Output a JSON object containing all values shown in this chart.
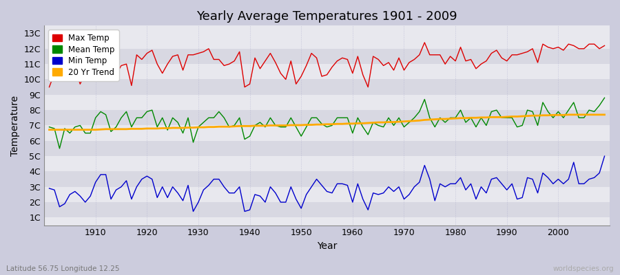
{
  "title": "Yearly Average Temperatures 1901 - 2009",
  "xlabel": "Year",
  "ylabel": "Temperature",
  "lat_lon_label": "Latitude 56.75 Longitude 12.25",
  "watermark": "worldspecies.org",
  "years": [
    1901,
    1902,
    1903,
    1904,
    1905,
    1906,
    1907,
    1908,
    1909,
    1910,
    1911,
    1912,
    1913,
    1914,
    1915,
    1916,
    1917,
    1918,
    1919,
    1920,
    1921,
    1922,
    1923,
    1924,
    1925,
    1926,
    1927,
    1928,
    1929,
    1930,
    1931,
    1932,
    1933,
    1934,
    1935,
    1936,
    1937,
    1938,
    1939,
    1940,
    1941,
    1942,
    1943,
    1944,
    1945,
    1946,
    1947,
    1948,
    1949,
    1950,
    1951,
    1952,
    1953,
    1954,
    1955,
    1956,
    1957,
    1958,
    1959,
    1960,
    1961,
    1962,
    1963,
    1964,
    1965,
    1966,
    1967,
    1968,
    1969,
    1970,
    1971,
    1972,
    1973,
    1974,
    1975,
    1976,
    1977,
    1978,
    1979,
    1980,
    1981,
    1982,
    1983,
    1984,
    1985,
    1986,
    1987,
    1988,
    1989,
    1990,
    1991,
    1992,
    1993,
    1994,
    1995,
    1996,
    1997,
    1998,
    1999,
    2000,
    2001,
    2002,
    2003,
    2004,
    2005,
    2006,
    2007,
    2008,
    2009
  ],
  "max_temp": [
    9.5,
    10.4,
    10.5,
    10.2,
    10.6,
    10.7,
    9.7,
    10.4,
    10.7,
    11.5,
    11.6,
    11.2,
    11.0,
    10.3,
    10.9,
    11.0,
    9.6,
    11.6,
    11.3,
    11.7,
    11.9,
    11.0,
    10.4,
    11.0,
    11.5,
    11.6,
    10.6,
    11.6,
    11.6,
    11.7,
    11.8,
    12.0,
    11.3,
    11.3,
    10.9,
    11.0,
    11.2,
    11.8,
    9.5,
    9.7,
    11.4,
    10.7,
    11.2,
    11.7,
    11.1,
    10.4,
    10.0,
    11.2,
    9.7,
    10.2,
    10.9,
    11.7,
    11.4,
    10.2,
    10.3,
    10.8,
    11.2,
    11.4,
    11.3,
    10.4,
    11.5,
    10.3,
    9.5,
    11.5,
    11.3,
    10.9,
    11.1,
    10.6,
    11.4,
    10.6,
    11.1,
    11.3,
    11.6,
    12.4,
    11.6,
    11.6,
    11.6,
    11.0,
    11.5,
    11.2,
    12.1,
    11.2,
    11.3,
    10.7,
    11.0,
    11.2,
    11.7,
    11.9,
    11.4,
    11.2,
    11.6,
    11.6,
    11.7,
    11.8,
    12.0,
    11.1,
    12.3,
    12.1,
    12.0,
    12.1,
    11.9,
    12.3,
    12.2,
    12.0,
    12.0,
    12.3,
    12.3,
    12.0,
    12.2
  ],
  "mean_temp": [
    6.9,
    6.8,
    5.5,
    6.8,
    6.5,
    6.9,
    7.0,
    6.5,
    6.5,
    7.5,
    7.9,
    7.7,
    6.6,
    6.9,
    7.5,
    7.9,
    6.9,
    7.5,
    7.5,
    7.9,
    8.0,
    6.9,
    7.5,
    6.7,
    7.5,
    7.2,
    6.5,
    7.5,
    5.9,
    6.9,
    7.2,
    7.5,
    7.5,
    7.9,
    7.5,
    6.9,
    7.0,
    7.5,
    6.1,
    6.3,
    7.0,
    7.2,
    6.9,
    7.5,
    7.0,
    6.9,
    6.9,
    7.5,
    6.9,
    6.3,
    6.9,
    7.5,
    7.5,
    7.1,
    6.9,
    7.0,
    7.5,
    7.5,
    7.5,
    6.5,
    7.5,
    6.9,
    6.4,
    7.2,
    7.0,
    6.9,
    7.5,
    7.0,
    7.5,
    6.9,
    7.2,
    7.5,
    7.9,
    8.7,
    7.5,
    6.9,
    7.5,
    7.2,
    7.5,
    7.5,
    8.0,
    7.2,
    7.5,
    6.9,
    7.5,
    7.0,
    7.9,
    8.0,
    7.5,
    7.5,
    7.5,
    6.9,
    7.0,
    8.0,
    7.9,
    7.0,
    8.5,
    7.9,
    7.5,
    7.9,
    7.5,
    8.0,
    8.5,
    7.5,
    7.5,
    8.0,
    7.9,
    8.3,
    8.8
  ],
  "min_temp": [
    2.9,
    2.8,
    1.7,
    1.9,
    2.5,
    2.7,
    2.4,
    2.0,
    2.4,
    3.3,
    3.8,
    3.8,
    2.2,
    2.8,
    3.0,
    3.4,
    2.2,
    3.0,
    3.5,
    3.7,
    3.5,
    2.3,
    3.0,
    2.3,
    3.0,
    2.6,
    2.1,
    3.1,
    1.4,
    2.0,
    2.8,
    3.1,
    3.5,
    3.5,
    3.0,
    2.6,
    2.6,
    3.0,
    1.4,
    1.5,
    2.5,
    2.4,
    2.0,
    3.0,
    2.6,
    2.0,
    2.0,
    3.0,
    2.2,
    1.6,
    2.5,
    3.0,
    3.5,
    3.1,
    2.7,
    2.6,
    3.2,
    3.2,
    3.1,
    2.0,
    3.2,
    2.2,
    1.5,
    2.6,
    2.5,
    2.6,
    3.0,
    2.7,
    3.0,
    2.2,
    2.5,
    3.0,
    3.3,
    4.4,
    3.5,
    2.1,
    3.2,
    3.0,
    3.2,
    3.2,
    3.6,
    2.8,
    3.2,
    2.2,
    3.0,
    2.6,
    3.5,
    3.6,
    3.2,
    2.8,
    3.2,
    2.2,
    2.3,
    3.6,
    3.5,
    2.6,
    3.9,
    3.6,
    3.2,
    3.5,
    3.2,
    3.5,
    4.6,
    3.2,
    3.2,
    3.5,
    3.6,
    3.9,
    5.0
  ],
  "trend": [
    6.72,
    6.72,
    6.72,
    6.72,
    6.72,
    6.72,
    6.72,
    6.72,
    6.72,
    6.72,
    6.74,
    6.76,
    6.76,
    6.76,
    6.76,
    6.76,
    6.78,
    6.78,
    6.78,
    6.8,
    6.8,
    6.8,
    6.82,
    6.82,
    6.84,
    6.84,
    6.84,
    6.86,
    6.86,
    6.88,
    6.88,
    6.9,
    6.9,
    6.92,
    6.92,
    6.92,
    6.94,
    6.96,
    6.96,
    6.96,
    6.98,
    6.98,
    6.98,
    7.0,
    7.0,
    7.0,
    7.0,
    7.02,
    7.02,
    7.02,
    7.04,
    7.04,
    7.06,
    7.06,
    7.08,
    7.08,
    7.1,
    7.1,
    7.12,
    7.12,
    7.14,
    7.14,
    7.16,
    7.18,
    7.2,
    7.2,
    7.22,
    7.22,
    7.24,
    7.26,
    7.28,
    7.3,
    7.32,
    7.36,
    7.38,
    7.4,
    7.42,
    7.42,
    7.44,
    7.46,
    7.48,
    7.48,
    7.5,
    7.5,
    7.52,
    7.52,
    7.54,
    7.54,
    7.54,
    7.56,
    7.58,
    7.58,
    7.6,
    7.62,
    7.64,
    7.64,
    7.66,
    7.66,
    7.68,
    7.68,
    7.68,
    7.7,
    7.7,
    7.7,
    7.7,
    7.7,
    7.7,
    7.7,
    7.7
  ],
  "max_color": "#dd0000",
  "mean_color": "#008800",
  "min_color": "#0000cc",
  "trend_color": "#ffaa00",
  "fig_bg": "#ccccdd",
  "plot_bg_light": "#e8e8ee",
  "plot_bg_dark": "#d8d8e2",
  "yticks": [
    1,
    2,
    3,
    4,
    5,
    6,
    7,
    8,
    9,
    10,
    11,
    12,
    13
  ],
  "ylim": [
    0.5,
    13.5
  ],
  "xlim": [
    1900,
    2010
  ]
}
